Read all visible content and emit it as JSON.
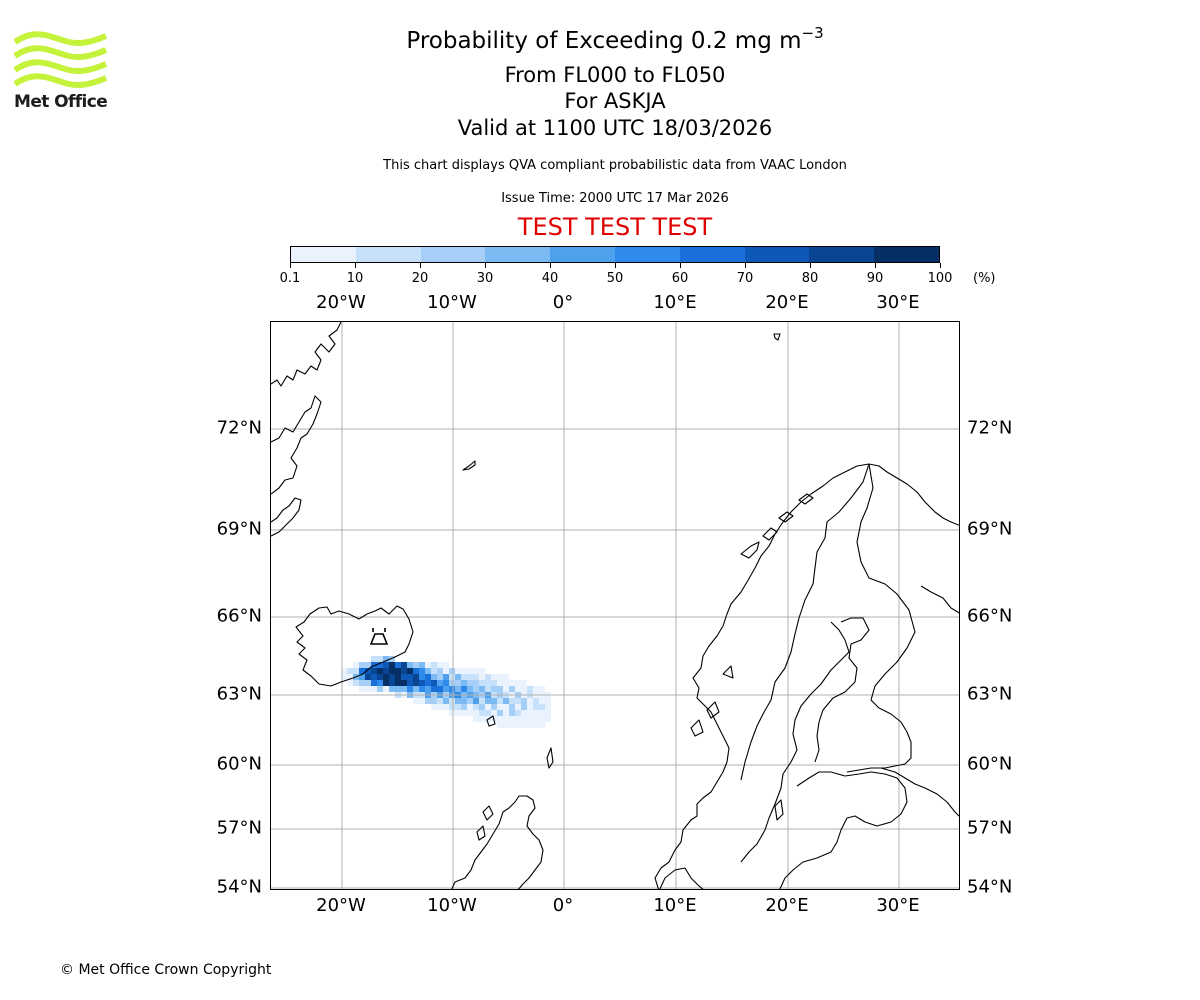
{
  "header": {
    "title_prefix": "Probability of Exceeding 0.2 mg m",
    "title_exponent": "−3",
    "flight_levels": "From FL000 to FL050",
    "volcano": "For ASKJA",
    "valid_time": "Valid at 1100 UTC 18/03/2026",
    "subtitle": "This chart displays QVA compliant probabilistic data from VAAC London",
    "issue_time": "Issue Time: 2000 UTC 17 Mar 2026",
    "test_banner": "TEST TEST TEST"
  },
  "logo": {
    "text": "Met Office",
    "wave_color": "#c5f23b"
  },
  "colorbar": {
    "unit": "(%)",
    "tick_labels": [
      "0.1",
      "10",
      "20",
      "30",
      "40",
      "50",
      "60",
      "70",
      "80",
      "90",
      "100"
    ],
    "colors": [
      "#eaf3fd",
      "#c8e1fa",
      "#a6cff7",
      "#7bbaf2",
      "#4fa1ee",
      "#2e8aeb",
      "#1a6fd8",
      "#0e58b8",
      "#084592",
      "#062f66"
    ]
  },
  "map": {
    "longitude_labels": [
      "20°W",
      "10°W",
      "0°",
      "10°E",
      "20°E",
      "30°E"
    ],
    "latitude_labels": [
      "72°N",
      "69°N",
      "66°N",
      "63°N",
      "60°N",
      "57°N",
      "54°N"
    ],
    "volcano_name": "ASKJA",
    "plume_max_probability": 100,
    "gridline_color": "#b0b0b0",
    "coastline_color": "#000000"
  },
  "footer": {
    "copyright": "© Met Office Crown Copyright"
  }
}
